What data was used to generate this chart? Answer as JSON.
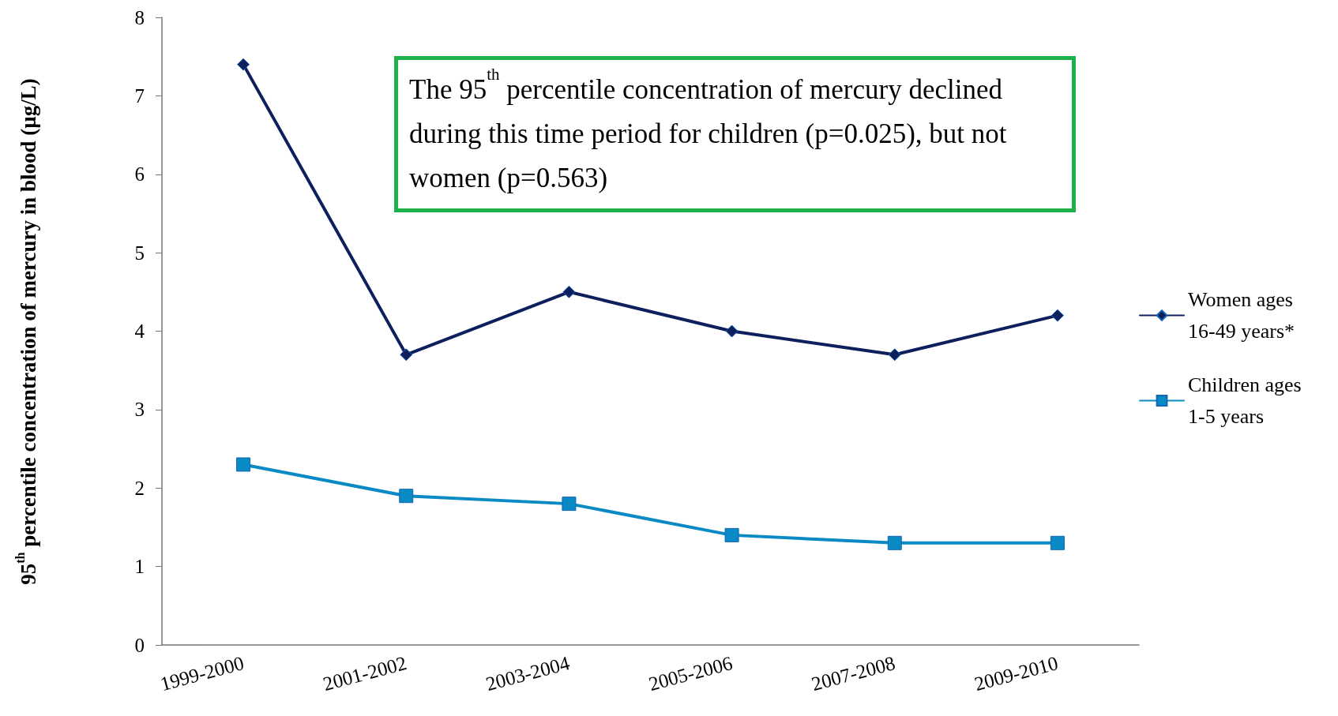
{
  "chart_data": {
    "type": "line",
    "ylabel": "95$^{th}$ percentile concentration of mercury in blood (µg/L)",
    "categories": [
      "1999-2000",
      "2001-2002",
      "2003-2004",
      "2005-2006",
      "2007-2008",
      "2009-2010"
    ],
    "series": [
      {
        "name": "Women ages 16-49 years*",
        "color": "#0d1f5c",
        "marker": "diamond",
        "values": [
          7.4,
          3.7,
          4.5,
          4.0,
          3.7,
          4.2
        ]
      },
      {
        "name": "Children ages 1-5 years",
        "color": "#0a8ac4",
        "marker": "square",
        "values": [
          2.3,
          1.9,
          1.8,
          1.4,
          1.3,
          1.3
        ]
      }
    ],
    "ylim": [
      0,
      8
    ],
    "yticks": [
      0,
      1,
      2,
      3,
      4,
      5,
      6,
      7,
      8
    ],
    "grid": false,
    "legend": "right",
    "line_style": "solid",
    "annotations": [
      "The 95$^{th}$ percentile concentration of mercury declined during this time period for children (p=0.025), but not women (p=0.563)"
    ]
  }
}
